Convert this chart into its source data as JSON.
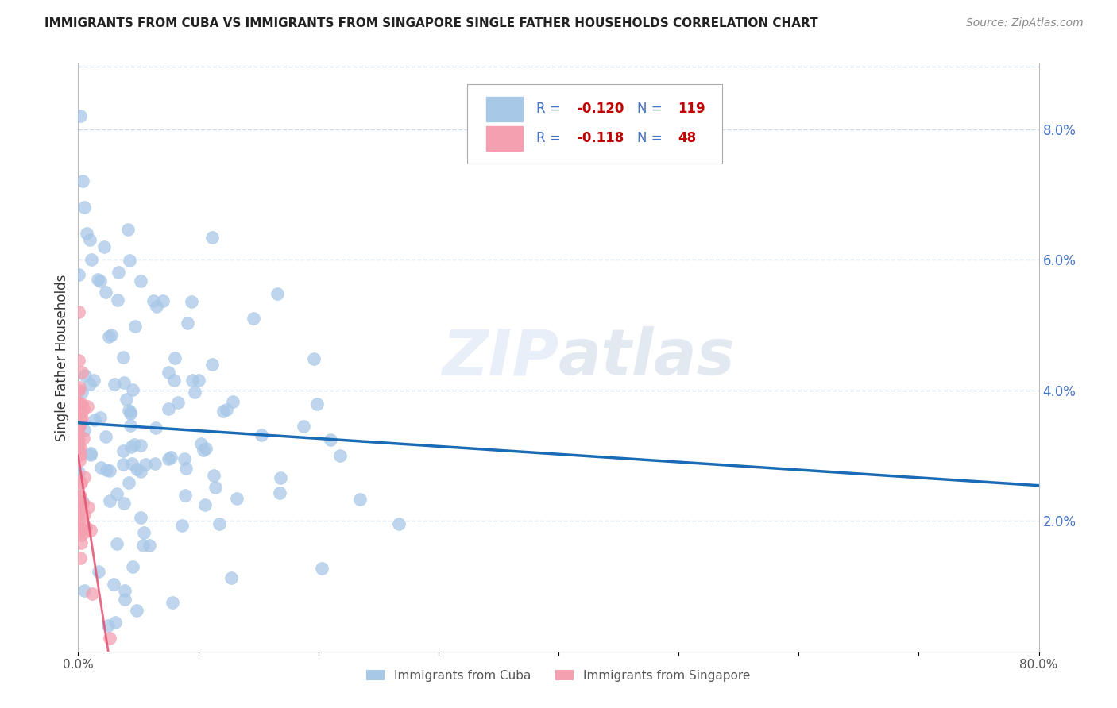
{
  "title": "IMMIGRANTS FROM CUBA VS IMMIGRANTS FROM SINGAPORE SINGLE FATHER HOUSEHOLDS CORRELATION CHART",
  "source": "Source: ZipAtlas.com",
  "ylabel": "Single Father Households",
  "x_min": 0.0,
  "x_max": 0.8,
  "y_min": 0.0,
  "y_max": 0.09,
  "x_tick_positions": [
    0.0,
    0.1,
    0.2,
    0.3,
    0.4,
    0.5,
    0.6,
    0.7,
    0.8
  ],
  "x_tick_labels": [
    "0.0%",
    "",
    "",
    "",
    "",
    "",
    "",
    "",
    "80.0%"
  ],
  "y_ticks_right": [
    0.02,
    0.04,
    0.06,
    0.08
  ],
  "y_tick_labels_right": [
    "2.0%",
    "4.0%",
    "6.0%",
    "8.0%"
  ],
  "color_cuba": "#a8c8e8",
  "color_singapore": "#f4a0b0",
  "trendline_cuba_color": "#1a6bb5",
  "trendline_singapore_color": "#e05070",
  "R_cuba": -0.12,
  "N_cuba": 119,
  "R_singapore": -0.118,
  "N_singapore": 48,
  "background_color": "#ffffff",
  "grid_color": "#c8d4e8",
  "watermark": "ZIPatlas",
  "legend_text_color": "#4472c4",
  "legend_R_color": "#c00000",
  "title_color": "#222222",
  "source_color": "#888888",
  "ylabel_color": "#333333",
  "tick_label_color": "#555555",
  "right_tick_color": "#4472c4"
}
